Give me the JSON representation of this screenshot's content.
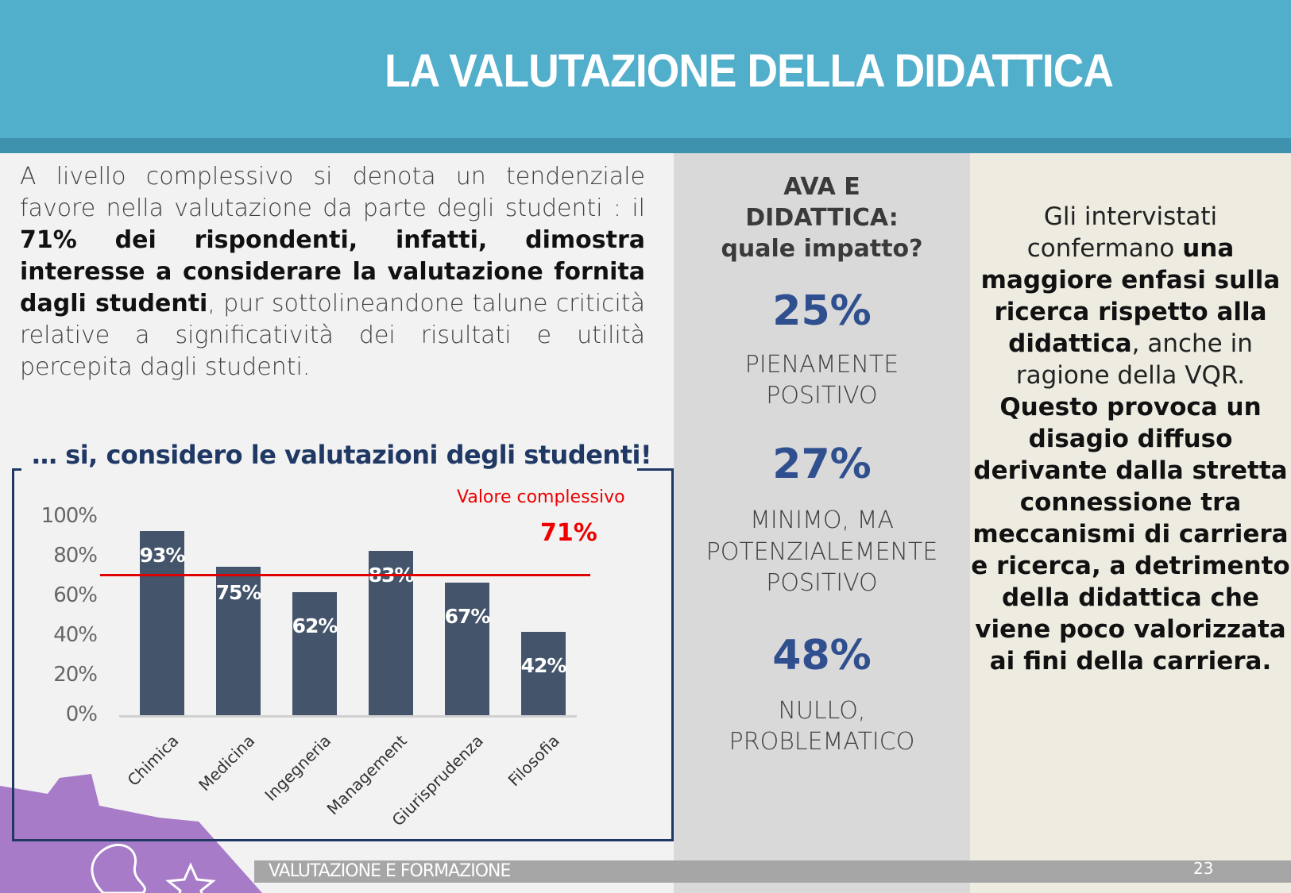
{
  "header": {
    "title": "LA VALUTAZIONE DELLA DIDATTICA"
  },
  "intro": {
    "part1": "A livello complessivo si denota un tendenziale favore nella valutazione da parte degli studenti : il ",
    "bold": "71% dei rispondenti, infatti, dimostra interesse a considerare la valutazione fornita dagli studenti",
    "part2": ", pur sottolineandone talune criticità relative a significatività dei risultati e utilità percepita dagli studenti."
  },
  "chart_subtitle": "… si, considero le valutazioni degli studenti!",
  "chart_data": {
    "type": "bar",
    "categories": [
      "Chimica",
      "Medicina",
      "Ingegneria",
      "Management",
      "Giurisprudenza",
      "Filosofia"
    ],
    "values": [
      93,
      75,
      62,
      83,
      67,
      42
    ],
    "value_labels": [
      "93%",
      "75%",
      "62%",
      "83%",
      "67%",
      "42%"
    ],
    "ylim": [
      0,
      100
    ],
    "yticks": [
      "0%",
      "20%",
      "40%",
      "60%",
      "80%",
      "100%"
    ],
    "reference_line": {
      "label": "Valore complessivo",
      "value": 71,
      "value_label": "71%",
      "color": "#E00000"
    },
    "bar_color": "#44546A"
  },
  "middle": {
    "heading1": "AVA E",
    "heading2": "DIDATTICA:",
    "heading3": "quale impatto?",
    "stats": [
      {
        "value": "25%",
        "label": [
          "PIENAMENTE",
          "POSITIVO"
        ]
      },
      {
        "value": "27%",
        "label": [
          "MINIMO, MA",
          "POTENZIALEMENTE",
          "POSITIVO"
        ]
      },
      {
        "value": "48%",
        "label": [
          "NULLO,",
          "PROBLEMATICO"
        ]
      }
    ]
  },
  "right": {
    "t1": "Gli intervistati confermano ",
    "b1": "una maggiore enfasi sulla ricerca rispetto alla didattica",
    "t2": ", anche in ragione della VQR. ",
    "b2": "Questo provoca un disagio diffuso derivante dalla stretta connessione tra meccanismi di carriera e ricerca, a detrimento della didattica che viene poco valorizzata ai fini della carriera."
  },
  "footer": {
    "label": "VALUTAZIONE E FORMAZIONE",
    "page": "23"
  }
}
